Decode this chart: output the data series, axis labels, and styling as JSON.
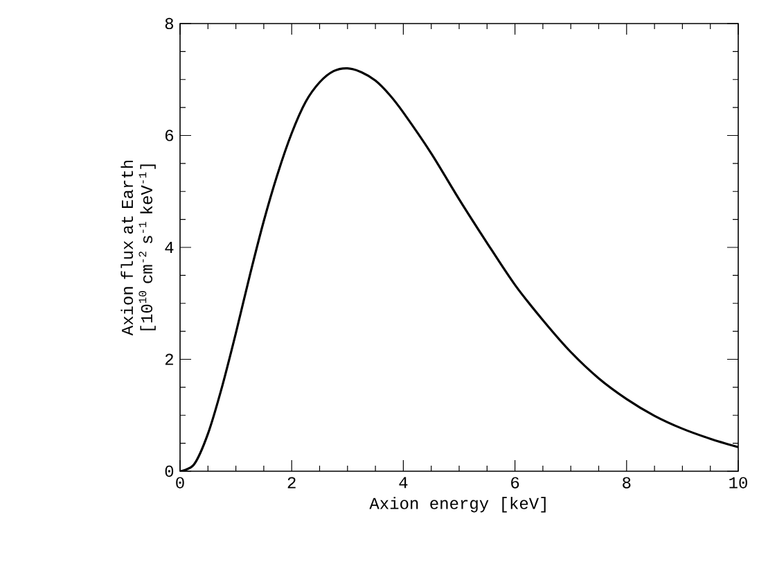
{
  "chart_data": {
    "type": "line",
    "xlabel": "Axion energy [keV]",
    "ylabel": "Axion flux at Earth [10$^{10}$ cm$^{-2}$ s$^{-1}$ keV$^{-1}$]",
    "x": [
      0,
      0.25,
      0.5,
      0.75,
      1,
      1.25,
      1.5,
      1.75,
      2,
      2.25,
      2.5,
      2.75,
      3,
      3.25,
      3.5,
      3.75,
      4,
      4.5,
      5,
      5.5,
      6,
      6.5,
      7,
      7.5,
      8,
      8.5,
      9,
      9.5,
      10
    ],
    "series": [
      {
        "color": "#000000",
        "values": [
          0,
          0.12,
          0.67,
          1.5,
          2.47,
          3.5,
          4.47,
          5.32,
          6.04,
          6.6,
          6.95,
          7.15,
          7.2,
          7.13,
          6.98,
          6.73,
          6.41,
          5.68,
          4.86,
          4.08,
          3.33,
          2.7,
          2.13,
          1.66,
          1.29,
          0.99,
          0.76,
          0.58,
          0.43
        ]
      }
    ],
    "xlim": [
      0,
      10
    ],
    "ylim": [
      0,
      8
    ],
    "xticks": [
      0,
      2,
      4,
      6,
      8,
      10
    ],
    "yticks": [
      0,
      2,
      4,
      6,
      8
    ],
    "grid": false,
    "marker": "none",
    "line_style": "solid"
  }
}
